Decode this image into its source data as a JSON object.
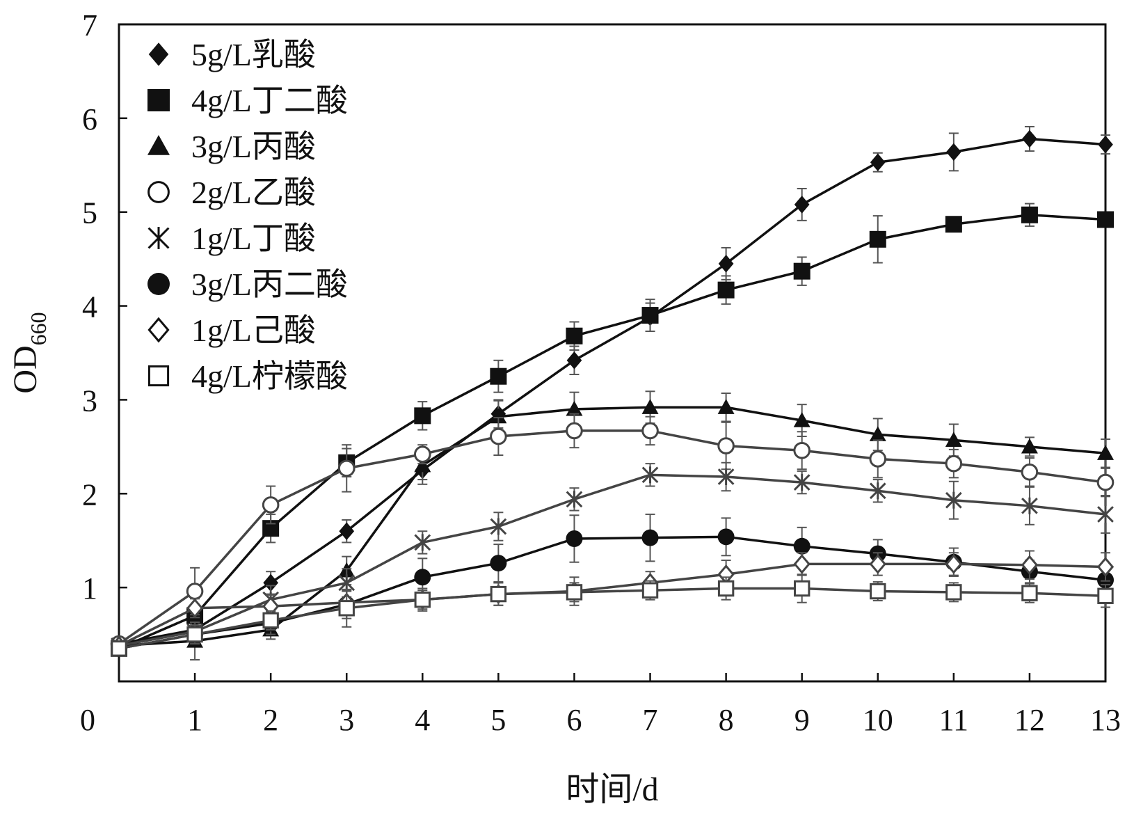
{
  "chart_data": {
    "type": "line",
    "xlabel": "时间/d",
    "ylabel_main": "OD",
    "ylabel_sub": "660",
    "xlim": [
      0,
      13
    ],
    "ylim": [
      0,
      7
    ],
    "x_ticks": [
      0,
      1,
      2,
      3,
      4,
      5,
      6,
      7,
      8,
      9,
      10,
      11,
      12,
      13
    ],
    "y_ticks": [
      1,
      2,
      3,
      4,
      5,
      6,
      7
    ],
    "x": [
      0,
      1,
      2,
      3,
      4,
      5,
      6,
      7,
      8,
      9,
      10,
      11,
      12,
      13
    ],
    "legend_position": "top-left",
    "grid": false,
    "series": [
      {
        "name": "5g/L乳酸",
        "marker": "diamond-filled",
        "color": "#111111",
        "values": [
          0.4,
          0.55,
          1.05,
          1.6,
          2.25,
          2.85,
          3.42,
          3.88,
          4.45,
          5.08,
          5.53,
          5.64,
          5.78,
          5.72
        ],
        "errors": [
          0.05,
          0.08,
          0.12,
          0.12,
          0.15,
          0.15,
          0.15,
          0.15,
          0.17,
          0.17,
          0.1,
          0.2,
          0.13,
          0.1
        ]
      },
      {
        "name": "4g/L丁二酸",
        "marker": "square-filled",
        "color": "#111111",
        "values": [
          0.35,
          0.7,
          1.63,
          2.33,
          2.83,
          3.25,
          3.68,
          3.9,
          4.17,
          4.37,
          4.71,
          4.87,
          4.97,
          4.92
        ],
        "errors": [
          0.05,
          0.08,
          0.15,
          0.15,
          0.15,
          0.17,
          0.15,
          0.17,
          0.15,
          0.15,
          0.25,
          0.05,
          0.12,
          0.05
        ]
      },
      {
        "name": "3g/L丙酸",
        "marker": "triangle-filled",
        "color": "#111111",
        "values": [
          0.38,
          0.43,
          0.55,
          1.18,
          2.3,
          2.82,
          2.9,
          2.92,
          2.92,
          2.78,
          2.63,
          2.57,
          2.5,
          2.43
        ],
        "errors": [
          0.05,
          0.2,
          0.1,
          0.15,
          0.15,
          0.17,
          0.18,
          0.17,
          0.15,
          0.17,
          0.17,
          0.17,
          0.1,
          0.15
        ]
      },
      {
        "name": "2g/L乙酸",
        "marker": "circle-open",
        "color": "#444444",
        "values": [
          0.4,
          0.96,
          1.88,
          2.27,
          2.42,
          2.61,
          2.67,
          2.67,
          2.51,
          2.46,
          2.37,
          2.32,
          2.23,
          2.12
        ],
        "errors": [
          0.05,
          0.25,
          0.2,
          0.25,
          0.1,
          0.2,
          0.18,
          0.15,
          0.25,
          0.2,
          0.2,
          0.15,
          0.15,
          0.15
        ]
      },
      {
        "name": "1g/L丁酸",
        "marker": "asterisk",
        "color": "#444444",
        "values": [
          0.38,
          0.53,
          0.87,
          1.05,
          1.48,
          1.65,
          1.94,
          2.2,
          2.18,
          2.12,
          2.03,
          1.93,
          1.87,
          1.78
        ],
        "errors": [
          0.05,
          0.1,
          0.15,
          0.15,
          0.12,
          0.15,
          0.12,
          0.12,
          0.15,
          0.12,
          0.12,
          0.2,
          0.2,
          0.2
        ]
      },
      {
        "name": "3g/L丙二酸",
        "marker": "circle-filled",
        "color": "#111111",
        "values": [
          0.35,
          0.5,
          0.62,
          0.82,
          1.11,
          1.26,
          1.52,
          1.53,
          1.54,
          1.44,
          1.36,
          1.27,
          1.17,
          1.08
        ],
        "errors": [
          0.05,
          0.1,
          0.12,
          0.15,
          0.2,
          0.2,
          0.25,
          0.25,
          0.2,
          0.2,
          0.15,
          0.15,
          0.12,
          0.15
        ]
      },
      {
        "name": "1g/L己酸",
        "marker": "diamond-open",
        "color": "#444444",
        "values": [
          0.38,
          0.78,
          0.8,
          0.84,
          0.87,
          0.93,
          0.96,
          1.05,
          1.14,
          1.25,
          1.25,
          1.25,
          1.24,
          1.22
        ],
        "errors": [
          0.05,
          0.1,
          0.12,
          0.12,
          0.12,
          0.12,
          0.15,
          0.12,
          0.15,
          0.12,
          0.12,
          0.12,
          0.15,
          0.15
        ]
      },
      {
        "name": "4g/L柠檬酸",
        "marker": "square-open",
        "color": "#444444",
        "values": [
          0.35,
          0.5,
          0.65,
          0.78,
          0.87,
          0.93,
          0.95,
          0.97,
          0.99,
          0.99,
          0.96,
          0.95,
          0.94,
          0.91
        ],
        "errors": [
          0.05,
          0.08,
          0.1,
          0.2,
          0.1,
          0.12,
          0.1,
          0.1,
          0.12,
          0.15,
          0.1,
          0.1,
          0.1,
          0.12
        ]
      }
    ]
  }
}
